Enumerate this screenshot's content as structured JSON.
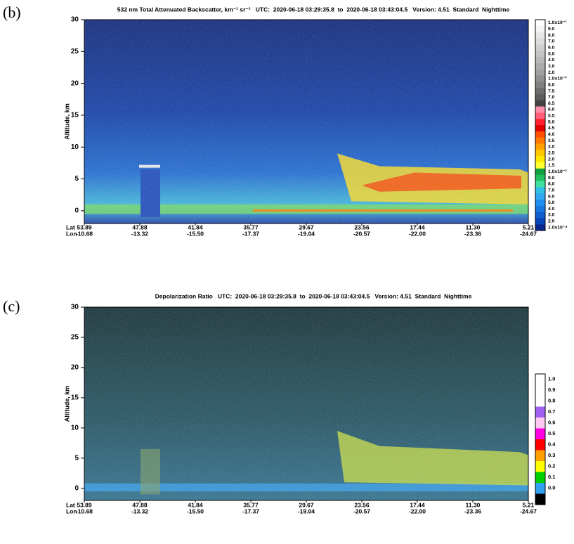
{
  "panels": [
    {
      "label": "(b)",
      "title": "532 nm Total Attenuated Backscatter, km⁻¹ sr⁻¹   UTC:  2020-06-18 03:29:35.8  to  2020-06-18 03:43:04.5   Version: 4.51  Standard  Nighttime",
      "y_axis_label": "Altitude, km",
      "ylim": [
        -2,
        30
      ],
      "yticks": [
        0,
        5,
        10,
        15,
        20,
        25,
        30
      ],
      "lat_label": "Lat",
      "lon_label": "Lon",
      "lat": [
        "53.89",
        "47.88",
        "41.84",
        "35.77",
        "29.67",
        "23.56",
        "17.44",
        "11.30",
        "5.21"
      ],
      "lon": [
        "-10.68",
        "-13.32",
        "-15.50",
        "-17.37",
        "-19.04",
        "-20.57",
        "-22.00",
        "-23.36",
        "-24.67"
      ],
      "colorbar": [
        {
          "label": "1.0x10⁻¹",
          "color": "#ffffff"
        },
        {
          "label": "9.0",
          "color": "#f4f4f4"
        },
        {
          "label": "8.0",
          "color": "#e8e8e8"
        },
        {
          "label": "7.0",
          "color": "#dcdcdc"
        },
        {
          "label": "6.0",
          "color": "#d0d0d0"
        },
        {
          "label": "5.0",
          "color": "#c4c4c4"
        },
        {
          "label": "4.0",
          "color": "#b8b8b8"
        },
        {
          "label": "3.0",
          "color": "#acacac"
        },
        {
          "label": "2.0",
          "color": "#a0a0a0"
        },
        {
          "label": "1.0x10⁻²",
          "color": "#909090"
        },
        {
          "label": "8.0",
          "color": "#808080"
        },
        {
          "label": "7.5",
          "color": "#6e6e6e"
        },
        {
          "label": "7.0",
          "color": "#5c5c5c"
        },
        {
          "label": "6.5",
          "color": "#444444"
        },
        {
          "label": "6.0",
          "color": "#ff8fa8"
        },
        {
          "label": "5.5",
          "color": "#ff5f7a"
        },
        {
          "label": "5.0",
          "color": "#ff2030"
        },
        {
          "label": "4.5",
          "color": "#e00000"
        },
        {
          "label": "4.0",
          "color": "#ff5000"
        },
        {
          "label": "3.5",
          "color": "#ff7800"
        },
        {
          "label": "3.0",
          "color": "#ffa000"
        },
        {
          "label": "2.5",
          "color": "#ffc800"
        },
        {
          "label": "2.0",
          "color": "#ffe600"
        },
        {
          "label": "1.5",
          "color": "#ffff30"
        },
        {
          "label": "1.0x10⁻³",
          "color": "#10a040"
        },
        {
          "label": "9.0",
          "color": "#20c060"
        },
        {
          "label": "8.0",
          "color": "#40e0a0"
        },
        {
          "label": "7.0",
          "color": "#30c0e8"
        },
        {
          "label": "6.0",
          "color": "#30a8f0"
        },
        {
          "label": "5.0",
          "color": "#2090f0"
        },
        {
          "label": "4.0",
          "color": "#1878e0"
        },
        {
          "label": "3.0",
          "color": "#1060d0"
        },
        {
          "label": "2.0",
          "color": "#0848b8"
        },
        {
          "label": "1.0x10⁻⁴",
          "color": "#082890"
        }
      ]
    },
    {
      "label": "(c)",
      "title": "Depolarization Ratio   UTC:  2020-06-18 03:29:35.8  to  2020-06-18 03:43:04.5   Version: 4.51  Standard  Nighttime",
      "y_axis_label": "Altitude, km",
      "ylim": [
        -2,
        30
      ],
      "yticks": [
        0,
        5,
        10,
        15,
        20,
        25,
        30
      ],
      "lat_label": "Lat",
      "lon_label": "Lon",
      "lat": [
        "53.89",
        "47.88",
        "41.84",
        "35.77",
        "29.67",
        "23.56",
        "17.44",
        "11.30",
        "5.21"
      ],
      "lon": [
        "-10.68",
        "-13.32",
        "-15.50",
        "-17.37",
        "-19.04",
        "-20.57",
        "-22.00",
        "-23.36",
        "-24.67"
      ],
      "colorbar": [
        {
          "label": "1.0",
          "color": "#ffffff"
        },
        {
          "label": "0.9",
          "color": "#ffffff"
        },
        {
          "label": "0.8",
          "color": "#ffffff"
        },
        {
          "label": "0.7",
          "color": "#a060f0"
        },
        {
          "label": "0.6",
          "color": "#ffc8f0"
        },
        {
          "label": "0.5",
          "color": "#ff00e0"
        },
        {
          "label": "0.4",
          "color": "#ff0000"
        },
        {
          "label": "0.3",
          "color": "#ffa000"
        },
        {
          "label": "0.2",
          "color": "#ffff00"
        },
        {
          "label": "0.1",
          "color": "#00d000"
        },
        {
          "label": "0.0",
          "color": "#30a0f0"
        }
      ]
    }
  ]
}
